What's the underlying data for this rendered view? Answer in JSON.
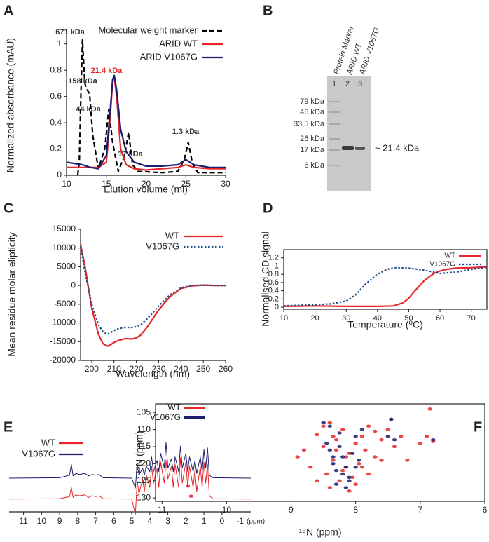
{
  "chart_data": [
    {
      "type": "line",
      "panel_label": "A",
      "xlabel": "Elution volume (ml)",
      "ylabel": "Normalized absorbance (mAU)",
      "xlim": [
        10,
        30
      ],
      "xticks": [
        10,
        15,
        20,
        25,
        30
      ],
      "ylim": [
        0,
        1.1
      ],
      "yticks": [
        0,
        0.2,
        0.4,
        0.6,
        0.8,
        1
      ],
      "legend": "upper right",
      "annotations": [
        {
          "text": "671 kDa",
          "color": "#333333"
        },
        {
          "text": "158 kDa",
          "color": "#333333"
        },
        {
          "text": "44 kDa",
          "color": "#333333"
        },
        {
          "text": "21.4 kDa",
          "color": "#e8262a"
        },
        {
          "text": "17 kDa",
          "color": "#333333"
        },
        {
          "text": "1.3 kDa",
          "color": "#333333"
        }
      ],
      "series": [
        {
          "name": "Molecular weight  marker",
          "color": "#000000",
          "dash": "dashed",
          "x": [
            11.4,
            11.6,
            11.8,
            12,
            12.3,
            12.6,
            12.9,
            13.3,
            14,
            14.8,
            15.3,
            15.8,
            16.5,
            17.3,
            17.8,
            18.3,
            19,
            22,
            24,
            24.8,
            25.3,
            25.8,
            26.5,
            28,
            30
          ],
          "values": [
            0,
            0.1,
            0.6,
            1.03,
            0.7,
            0.65,
            0.62,
            0.3,
            0.05,
            0.2,
            0.5,
            0.25,
            0.03,
            0.15,
            0.33,
            0.08,
            0.03,
            0.02,
            0.03,
            0.12,
            0.25,
            0.1,
            0.02,
            0.02,
            0.02
          ]
        },
        {
          "name": "ARID WT",
          "color": "#e8262a",
          "dash": "solid",
          "x": [
            10,
            14,
            15,
            15.5,
            15.8,
            16,
            16.3,
            16.8,
            17.5,
            18.5,
            20,
            22,
            24,
            25,
            26,
            28,
            30
          ],
          "values": [
            0.06,
            0.06,
            0.1,
            0.45,
            0.72,
            0.75,
            0.6,
            0.2,
            0.08,
            0.05,
            0.04,
            0.05,
            0.06,
            0.08,
            0.06,
            0.05,
            0.05
          ]
        },
        {
          "name": "ARID V1067G",
          "color": "#1c1d6e",
          "dash": "solid",
          "x": [
            10,
            12,
            13,
            14,
            15,
            15.5,
            15.8,
            16,
            16.3,
            16.8,
            17.5,
            18.5,
            20,
            22,
            24,
            25,
            26,
            28,
            30
          ],
          "values": [
            0.1,
            0.08,
            0.06,
            0.05,
            0.15,
            0.5,
            0.73,
            0.76,
            0.65,
            0.35,
            0.18,
            0.1,
            0.07,
            0.07,
            0.08,
            0.12,
            0.08,
            0.06,
            0.06
          ]
        }
      ]
    },
    {
      "type": "line",
      "panel_label": "C",
      "xlabel": "Wavelength (nm)",
      "ylabel": "Mean residue molar elipticity",
      "xlim": [
        195,
        260
      ],
      "xticks": [
        200,
        210,
        220,
        230,
        240,
        250,
        260
      ],
      "ylim": [
        -20000,
        15000
      ],
      "yticks": [
        -20000,
        -15000,
        -10000,
        -5000,
        0,
        5000,
        10000,
        15000
      ],
      "legend": "upper right",
      "x": [
        195,
        197,
        200,
        203,
        205,
        207,
        208,
        210,
        212,
        215,
        218,
        220,
        222,
        225,
        230,
        235,
        240,
        245,
        250,
        255,
        260
      ],
      "series": [
        {
          "name": "WT",
          "color": "#e8262a",
          "dash": "solid",
          "values": [
            11000,
            5000,
            -6000,
            -13000,
            -15500,
            -16200,
            -16000,
            -15200,
            -14700,
            -14200,
            -14300,
            -14000,
            -13200,
            -11000,
            -6500,
            -3000,
            -800,
            -100,
            100,
            0,
            0
          ]
        },
        {
          "name": "V1067G",
          "color": "#1f4e8c",
          "dash": "dotted",
          "values": [
            10500,
            3500,
            -5000,
            -10500,
            -12300,
            -13000,
            -12800,
            -12000,
            -11500,
            -11200,
            -11200,
            -11000,
            -10500,
            -8800,
            -5500,
            -2500,
            -600,
            0,
            100,
            0,
            0
          ]
        }
      ]
    },
    {
      "type": "line",
      "panel_label": "D",
      "xlabel": "Temperature (⁰C)",
      "ylabel": "Normalised CD signal",
      "xlim": [
        10,
        75
      ],
      "xticks": [
        10,
        20,
        30,
        40,
        50,
        60,
        70
      ],
      "ylim": [
        -0.05,
        1.4
      ],
      "yticks": [
        0,
        0.2,
        0.4,
        0.6,
        0.8,
        1,
        1.2
      ],
      "legend": "upper right",
      "series": [
        {
          "name": "WT",
          "color": "#e8262a",
          "dash": "solid",
          "x": [
            10,
            20,
            30,
            40,
            45,
            48,
            50,
            52,
            55,
            58,
            60,
            62,
            65,
            70,
            75
          ],
          "values": [
            0.02,
            0.03,
            0.02,
            0.02,
            0.03,
            0.1,
            0.22,
            0.4,
            0.65,
            0.82,
            0.88,
            0.92,
            0.95,
            0.96,
            0.98
          ]
        },
        {
          "name": "V1067G",
          "color": "#1f4e8c",
          "dash": "dotted",
          "x": [
            10,
            20,
            25,
            30,
            33,
            36,
            40,
            43,
            46,
            50,
            55,
            60,
            65,
            70,
            75
          ],
          "values": [
            0.03,
            0.06,
            0.08,
            0.15,
            0.3,
            0.55,
            0.8,
            0.92,
            0.96,
            0.95,
            0.9,
            0.82,
            0.85,
            0.92,
            0.97
          ]
        }
      ]
    },
    {
      "type": "spectrum",
      "panel_label": "E",
      "xlabel": "(ppm)",
      "xlim": [
        11.8,
        -1.6
      ],
      "xticks": [
        11,
        10,
        9,
        8,
        7,
        6,
        5,
        4,
        3,
        2,
        1,
        0,
        -1
      ],
      "legend": "upper left",
      "x": [
        11.8,
        9,
        8.45,
        8.35,
        8.25,
        8.1,
        7.9,
        7.6,
        7.4,
        7.2,
        7.0,
        6.8,
        6.6,
        5.0,
        4.8,
        4.7,
        4.6,
        4.4,
        4.3,
        4.2,
        4.0,
        3.9,
        3.8,
        3.6,
        3.5,
        3.4,
        3.2,
        3.1,
        3.0,
        2.8,
        2.7,
        2.6,
        2.4,
        2.3,
        2.2,
        2.0,
        1.9,
        1.8,
        1.6,
        1.5,
        1.4,
        1.2,
        1.1,
        1.0,
        0.9,
        0.8,
        0.7,
        0.5,
        -1.6
      ],
      "series": [
        {
          "name": "WT",
          "color": "#e8262a",
          "dash": "solid",
          "values": [
            0.02,
            0.03,
            0.08,
            0.3,
            0.06,
            0.12,
            0.1,
            0.12,
            0.06,
            0.1,
            0.08,
            0.1,
            0.03,
            0.02,
            -0.35,
            0.45,
            0.15,
            0.5,
            0.2,
            0.6,
            0.3,
            0.8,
            0.4,
            0.75,
            0.3,
            0.9,
            0.4,
            0.95,
            0.5,
            0.8,
            0.3,
            0.85,
            0.3,
            1.0,
            0.4,
            0.9,
            0.3,
            0.8,
            0.3,
            0.7,
            0.2,
            0.8,
            0.3,
            0.9,
            0.4,
            0.85,
            0.1,
            0.03,
            0.02
          ]
        },
        {
          "name": "V1067G",
          "color": "#1c1d6e",
          "dash": "solid",
          "values": [
            0.02,
            0.03,
            0.1,
            0.4,
            0.08,
            0.15,
            0.12,
            0.15,
            0.08,
            0.12,
            0.1,
            0.12,
            0.03,
            0.02,
            -0.25,
            0.4,
            0.1,
            0.3,
            0.1,
            0.35,
            0.2,
            0.6,
            0.2,
            0.5,
            0.2,
            0.7,
            0.3,
            1.0,
            0.3,
            0.55,
            0.2,
            0.6,
            0.2,
            0.9,
            0.3,
            0.7,
            0.2,
            0.6,
            0.2,
            0.5,
            0.15,
            0.6,
            0.2,
            0.8,
            0.3,
            0.85,
            0.1,
            0.03,
            0.02
          ]
        }
      ]
    },
    {
      "type": "scatter",
      "panel_label": "F",
      "xlabel": "¹⁵N (ppm)",
      "ylabel": "¹⁵N (ppm)",
      "xlim": [
        11.1,
        6
      ],
      "xticks": [
        11,
        10,
        9,
        8,
        7,
        6
      ],
      "ylim": [
        131,
        102.5
      ],
      "yticks": [
        105,
        110,
        115,
        120,
        125,
        130
      ],
      "legend": "upper left",
      "series": [
        {
          "name": "WT",
          "color": "#e8262a",
          "x": [
            10.6,
            10.55,
            8.9,
            8.7,
            8.6,
            8.5,
            8.45,
            8.4,
            8.35,
            8.3,
            8.25,
            8.2,
            8.15,
            8.1,
            8.05,
            8.0,
            7.95,
            7.9,
            7.85,
            7.8,
            7.7,
            7.6,
            7.5,
            7.4,
            7.3,
            7.2,
            7.0,
            6.9,
            6.8,
            6.85,
            8.8,
            8.6,
            8.4,
            8.2,
            8.0,
            7.8,
            7.6,
            8.5,
            8.3,
            8.1,
            7.9,
            7.7,
            8.35,
            8.15,
            7.45
          ],
          "values": [
            126.5,
            129.5,
            118,
            121,
            111.5,
            115,
            123,
            108,
            119,
            113,
            125,
            110,
            121,
            117,
            124,
            114,
            120,
            112,
            116,
            109,
            118,
            113,
            110,
            115,
            112,
            119,
            114,
            112,
            113.5,
            104,
            116,
            125,
            127,
            122,
            126,
            123,
            119,
            109,
            116,
            128,
            121,
            110.5,
            112,
            118,
            107
          ]
        },
        {
          "name": "V1067G",
          "color": "#1c1d6e",
          "x": [
            8.5,
            8.45,
            8.4,
            8.35,
            8.3,
            8.25,
            8.2,
            8.15,
            8.1,
            8.05,
            8.0,
            7.95,
            7.9,
            7.5,
            7.4,
            6.8,
            8.3,
            8.2,
            8.1,
            8.4,
            8.25,
            8.15,
            7.45,
            8.0,
            8.35
          ],
          "values": [
            108,
            114,
            116,
            120,
            122,
            115,
            118,
            121,
            124,
            117,
            112,
            119,
            110,
            112,
            113,
            113,
            126,
            123,
            125,
            109,
            111,
            127,
            107,
            121,
            118
          ]
        }
      ]
    }
  ],
  "gel": {
    "panel_label": "B",
    "lane_labels": [
      "Protein Marker",
      "ARID WT",
      "ARID V1067G"
    ],
    "lane_numbers": [
      "1",
      "2",
      "3"
    ],
    "mw_labels": [
      "79 kDa",
      "46 kDa",
      "33.5 kDa",
      "26 kDa",
      "17 kDa",
      "6 kDa"
    ],
    "band_label": "~ 21.4 kDa"
  }
}
